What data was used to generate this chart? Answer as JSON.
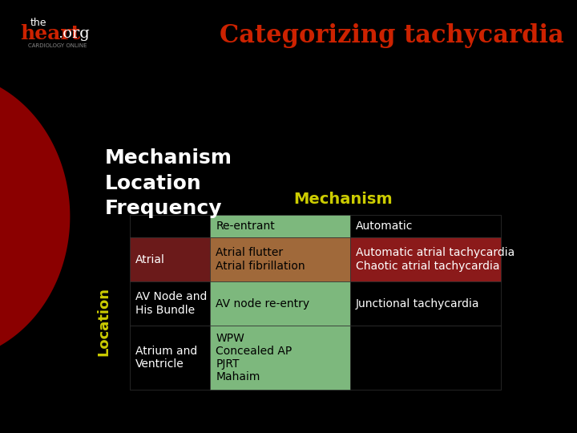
{
  "title": "Categorizing tachycardia",
  "title_color": "#cc2200",
  "bg_color": "#000000",
  "left_curve_color": "#8b0000",
  "header_left_text": "Mechanism\nLocation\nFrequency",
  "header_left_color": "#ffffff",
  "mechanism_label": "Mechanism",
  "mechanism_label_color": "#cccc00",
  "location_label": "Location",
  "location_label_color": "#cccc00",
  "rows": [
    {
      "location": "",
      "re_entrant": "Re-entrant",
      "automatic": "Automatic",
      "re_entrant_bg": "#7db87d",
      "automatic_bg": "#000000",
      "location_bg": "#000000",
      "re_entrant_color": "#000000",
      "automatic_color": "#ffffff",
      "location_color": "#ffffff"
    },
    {
      "location": "Atrial",
      "re_entrant": "Atrial flutter\nAtrial fibrillation",
      "automatic": "Automatic atrial tachycardia\nChaotic atrial tachycardia",
      "re_entrant_bg": "#a0693a",
      "automatic_bg": "#8b1a1a",
      "location_bg": "#6b1a1a",
      "re_entrant_color": "#000000",
      "automatic_color": "#ffffff",
      "location_color": "#ffffff"
    },
    {
      "location": "AV Node and\nHis Bundle",
      "re_entrant": "AV node re-entry",
      "automatic": "Junctional tachycardia",
      "re_entrant_bg": "#7db87d",
      "automatic_bg": "#000000",
      "location_bg": "#000000",
      "re_entrant_color": "#000000",
      "automatic_color": "#ffffff",
      "location_color": "#ffffff"
    },
    {
      "location": "Atrium and\nVentricle",
      "re_entrant": "WPW\nConcealed AP\nPJRT\nMahaim",
      "automatic": "",
      "re_entrant_bg": "#7db87d",
      "automatic_bg": "#000000",
      "location_bg": "#000000",
      "re_entrant_color": "#000000",
      "automatic_color": "#ffffff",
      "location_color": "#ffffff"
    }
  ],
  "logo_the_color": "#ffffff",
  "logo_heart_color": "#cc2200",
  "logo_org_color": "#ffffff",
  "logo_cardiology_color": "#888888"
}
